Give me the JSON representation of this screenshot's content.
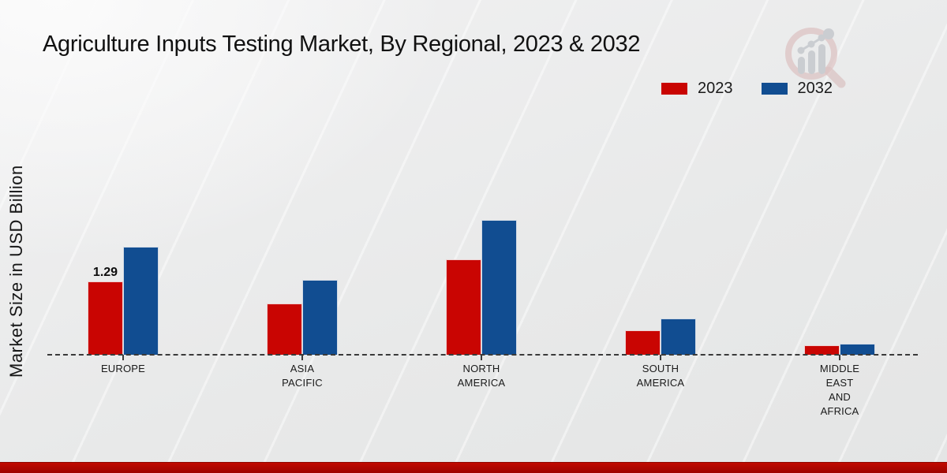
{
  "title": "Agriculture Inputs Testing Market, By Regional, 2023 & 2032",
  "y_axis_label": "Market Size in USD Billion",
  "legend": {
    "items": [
      {
        "label": "2023",
        "color": "#c90502"
      },
      {
        "label": "2032",
        "color": "#114d91"
      }
    ]
  },
  "colors": {
    "bar_2023": "#c90502",
    "bar_2032": "#114d91",
    "footer_band": "#ad0600",
    "background": "#ebebec",
    "text": "#1a1a1a",
    "watermark_ring": "#d9bcbc",
    "watermark_bars": "#c5c8cd"
  },
  "watermark": {
    "icon": "magnifier-bar-chart-logo"
  },
  "chart_data": {
    "type": "bar",
    "categories": [
      "EUROPE",
      "ASIA PACIFIC",
      "NORTH AMERICA",
      "SOUTH AMERICA",
      "MIDDLE EAST AND AFRICA"
    ],
    "category_label_lines": [
      [
        "EUROPE"
      ],
      [
        "ASIA",
        "PACIFIC"
      ],
      [
        "NORTH",
        "AMERICA"
      ],
      [
        "SOUTH",
        "AMERICA"
      ],
      [
        "MIDDLE",
        "EAST",
        "AND",
        "AFRICA"
      ]
    ],
    "series": [
      {
        "name": "2023",
        "color": "#c90502",
        "values": [
          1.29,
          0.9,
          1.68,
          0.43,
          0.16
        ]
      },
      {
        "name": "2032",
        "color": "#114d91",
        "values": [
          1.89,
          1.31,
          2.36,
          0.64,
          0.2
        ]
      }
    ],
    "annotations": [
      {
        "series_index": 0,
        "category_index": 0,
        "text": "1.29"
      }
    ],
    "title": "Agriculture Inputs Testing Market, By Regional, 2023 & 2032",
    "xlabel": "",
    "ylabel": "Market Size in USD Billion",
    "ylim": [
      0,
      2.6
    ],
    "grid": false,
    "y_ticks_visible": false,
    "legend_position": "top-right",
    "baseline_style": "dashed"
  }
}
